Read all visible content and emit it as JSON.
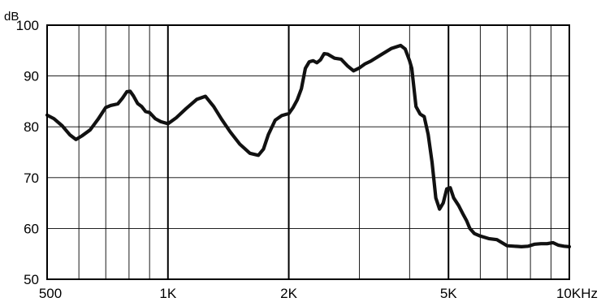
{
  "chart_data": {
    "type": "line",
    "title": "",
    "xlabel": "",
    "ylabel": "dB",
    "xscale": "log",
    "xlim": [
      500,
      10000
    ],
    "ylim": [
      50,
      100
    ],
    "grid": true,
    "x_major_ticks": [
      500,
      1000,
      2000,
      5000,
      10000
    ],
    "x_minor_ticks": [
      600,
      700,
      800,
      900,
      3000,
      4000,
      6000,
      7000,
      8000,
      9000
    ],
    "x_tick_labels": [
      "500",
      "1K",
      "2K",
      "5K",
      "10KHz"
    ],
    "y_ticks": [
      50,
      60,
      70,
      80,
      90,
      100
    ],
    "y_tick_labels": [
      "50",
      "60",
      "70",
      "80",
      "90",
      "100"
    ],
    "colors": {
      "line": "#111111",
      "grid": "#000000",
      "background": "#ffffff"
    },
    "series": [
      {
        "x": [
          500,
          520,
          545,
          570,
          590,
          610,
          640,
          670,
          700,
          720,
          750,
          770,
          790,
          805,
          820,
          840,
          860,
          880,
          900,
          930,
          960,
          1000,
          1050,
          1110,
          1180,
          1240,
          1300,
          1360,
          1430,
          1510,
          1600,
          1680,
          1730,
          1780,
          1850,
          1920,
          2000,
          2050,
          2100,
          2150,
          2200,
          2250,
          2300,
          2350,
          2400,
          2450,
          2500,
          2600,
          2700,
          2800,
          2900,
          3000,
          3100,
          3200,
          3400,
          3600,
          3800,
          3900,
          4000,
          4050,
          4150,
          4250,
          4350,
          4450,
          4550,
          4650,
          4750,
          4850,
          4950,
          5050,
          5150,
          5300,
          5420,
          5550,
          5650,
          5800,
          6000,
          6300,
          6600,
          7000,
          7300,
          7600,
          7900,
          8200,
          8500,
          8800,
          9100,
          9400,
          9700,
          10000
        ],
        "y": [
          82.3,
          81.6,
          80.2,
          78.4,
          77.5,
          78.2,
          79.4,
          81.5,
          83.8,
          84.2,
          84.5,
          85.6,
          86.9,
          87.0,
          86.1,
          84.6,
          84.0,
          83.0,
          82.8,
          81.6,
          81.0,
          80.6,
          81.8,
          83.6,
          85.4,
          86.0,
          84.0,
          81.5,
          79.0,
          76.6,
          74.8,
          74.4,
          75.6,
          78.5,
          81.3,
          82.2,
          82.6,
          83.8,
          85.3,
          87.5,
          91.5,
          92.8,
          93.0,
          92.6,
          93.2,
          94.4,
          94.3,
          93.5,
          93.3,
          92.0,
          91.0,
          91.6,
          92.4,
          92.9,
          94.2,
          95.4,
          96.0,
          95.3,
          93.0,
          91.5,
          84.0,
          82.5,
          82.0,
          78.5,
          73.0,
          66.0,
          63.8,
          65.0,
          67.8,
          68.0,
          66.0,
          64.5,
          63.0,
          61.5,
          60.0,
          59.0,
          58.5,
          58.0,
          57.8,
          56.6,
          56.5,
          56.4,
          56.5,
          56.9,
          57.0,
          57.0,
          57.2,
          56.7,
          56.5,
          56.4
        ]
      }
    ]
  }
}
